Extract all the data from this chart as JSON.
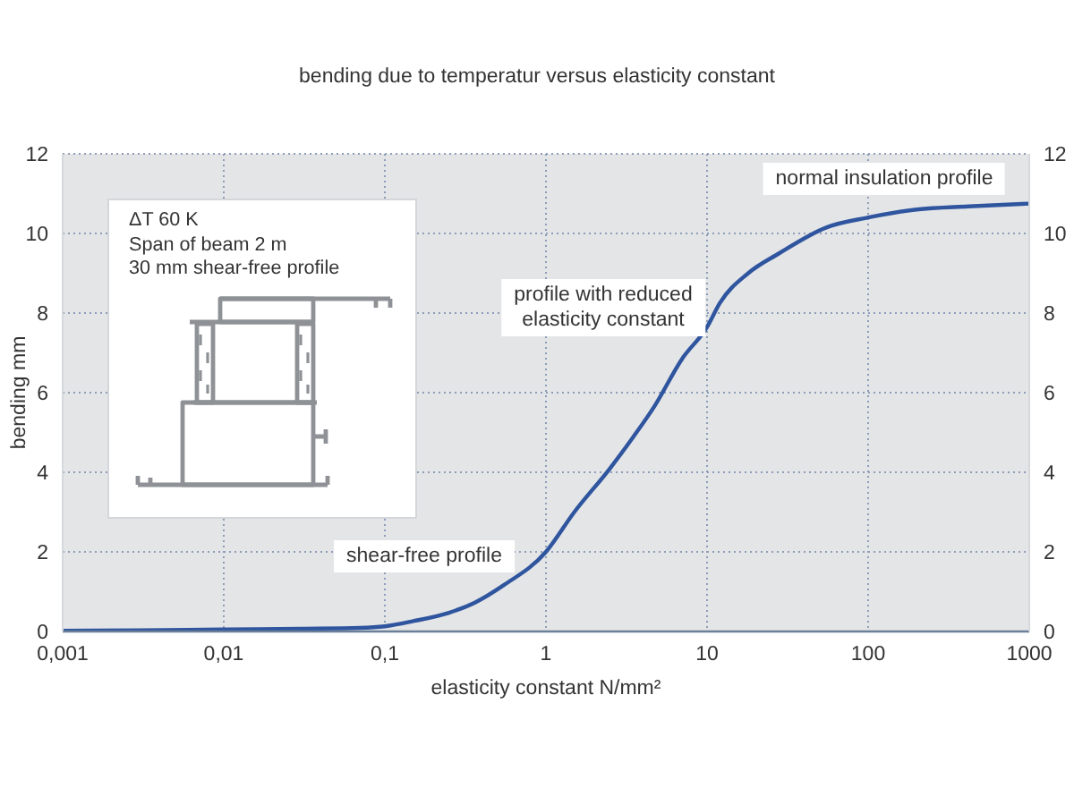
{
  "chart_data": {
    "type": "line",
    "title": "bending due to temperatur versus elasticity constant",
    "xlabel": "elasticity constant N/mm²",
    "ylabel": "bending mm",
    "x": [
      0.001,
      0.003,
      0.01,
      0.03,
      0.07,
      0.1,
      0.15,
      0.25,
      0.36,
      0.55,
      1,
      1.5,
      2.5,
      3.5,
      4.7,
      7,
      10,
      12,
      18,
      28,
      55,
      100,
      200,
      420,
      1000
    ],
    "values": [
      0.02,
      0.03,
      0.05,
      0.07,
      0.09,
      0.13,
      0.26,
      0.47,
      0.72,
      1.17,
      2.0,
      3.0,
      4.1,
      4.9,
      5.65,
      6.85,
      7.65,
      8.25,
      9.0,
      9.5,
      10.15,
      10.4,
      10.6,
      10.68,
      10.75
    ],
    "color": "#2f559f",
    "marker": "none",
    "log": "x",
    "grid": true,
    "xlim": [
      0.001,
      1000
    ],
    "xticks": [
      {
        "value": 0.001,
        "label": "0,001"
      },
      {
        "value": 0.01,
        "label": "0,01"
      },
      {
        "value": 0.1,
        "label": "0,1"
      },
      1,
      10,
      100,
      1000
    ],
    "ylim": [
      0,
      12
    ],
    "yticks": [
      0,
      2,
      4,
      6,
      8,
      10,
      12
    ],
    "y2lim": [
      0,
      12
    ],
    "y2ticks": [
      0,
      2,
      4,
      6,
      8,
      10,
      12
    ],
    "annotations": [
      "ΔT 60 K",
      "Span of beam 2 m",
      "30 mm shear-free profile",
      "normal insulation profile",
      "profile with reduced elasticity constant",
      "shear-free profile"
    ]
  }
}
